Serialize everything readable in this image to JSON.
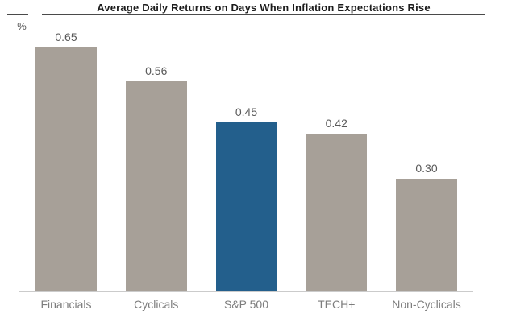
{
  "chart_data": {
    "type": "bar",
    "title": "Average Daily Returns on Days When Inflation Expectations Rise",
    "xlabel": "",
    "ylabel": "%",
    "categories": [
      "Financials",
      "Cyclicals",
      "S&P 500",
      "TECH+",
      "Non-Cyclicals"
    ],
    "values": [
      0.65,
      0.56,
      0.45,
      0.42,
      0.3
    ],
    "value_labels": [
      "0.65",
      "0.56",
      "0.45",
      "0.42",
      "0.30"
    ],
    "highlight_index": 2,
    "highlighted_category": "S&P 500",
    "ylim": [
      0,
      0.74
    ],
    "grid": false,
    "legend": false,
    "colors": {
      "bar_default": "#a7a098",
      "bar_highlight": "#235f8c",
      "title": "#1c1c1c",
      "title_rule": "#4a4a4a",
      "baseline": "#cbcbcb",
      "value_label": "#595959",
      "category_label": "#7d7d7d",
      "background": "#ffffff"
    }
  }
}
